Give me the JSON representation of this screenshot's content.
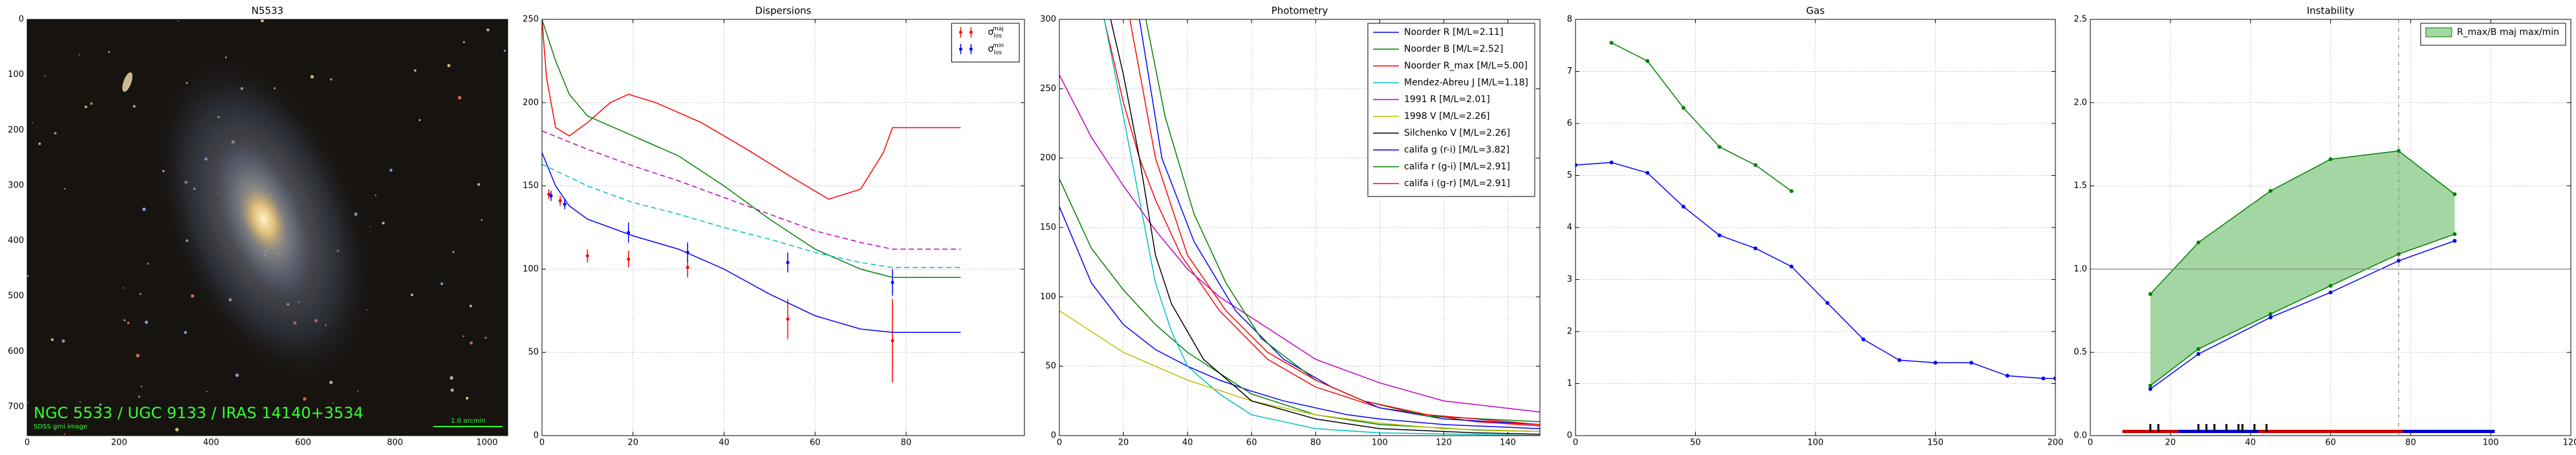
{
  "chart_data": [
    {
      "type": "image",
      "title": "N5533",
      "xlim": [
        0,
        1045
      ],
      "ylim": [
        752,
        0
      ],
      "xticks": [
        0,
        200,
        400,
        600,
        800,
        1000
      ],
      "yticks": [
        0,
        100,
        200,
        300,
        400,
        500,
        600,
        700
      ],
      "grid": false,
      "annotations": [
        "NGC 5533 / UGC 9133 / IRAS 14140+3534",
        "SDSS gmi image",
        "1.0 arcmin"
      ]
    },
    {
      "type": "line",
      "title": "Dispersions",
      "xlim": [
        0,
        106
      ],
      "ylim": [
        0,
        250
      ],
      "xticks": [
        0,
        20,
        40,
        60,
        80
      ],
      "yticks": [
        0,
        50,
        100,
        150,
        200,
        250
      ],
      "grid": true,
      "legend": "upper right",
      "series": [
        {
          "name": "σ",
          "name_sup": "maj",
          "name_sub": "los",
          "color": "#ff0000",
          "x": [
            1.5,
            4,
            10,
            19,
            32,
            54,
            77
          ],
          "values": [
            145,
            141,
            108,
            106,
            101,
            70,
            57
          ],
          "errors": [
            3,
            3,
            4,
            5,
            6,
            12,
            25
          ]
        },
        {
          "name": "σ",
          "name_sup": "min",
          "name_sub": "los",
          "color": "#0000ff",
          "x": [
            2,
            5,
            19,
            32,
            54,
            77
          ],
          "values": [
            144,
            139,
            122,
            110,
            104,
            92
          ],
          "errors": [
            3,
            3,
            6,
            6,
            6,
            8
          ]
        },
        {
          "color": "#ff0000",
          "x": [
            0,
            1,
            3,
            6,
            10,
            15,
            19,
            25,
            35,
            45,
            55,
            63,
            70,
            75,
            77,
            92
          ],
          "values": [
            250,
            215,
            185,
            180,
            188,
            200,
            205,
            200,
            188,
            172,
            155,
            142,
            148,
            170,
            185,
            185
          ]
        },
        {
          "color": "#008000",
          "x": [
            0,
            3,
            6,
            10,
            20,
            30,
            40,
            50,
            60,
            70,
            77,
            92
          ],
          "values": [
            250,
            225,
            205,
            192,
            180,
            168,
            150,
            130,
            112,
            100,
            95,
            95
          ]
        },
        {
          "color": "#0000ff",
          "x": [
            0,
            3,
            6,
            10,
            20,
            30,
            40,
            50,
            60,
            70,
            77,
            92
          ],
          "values": [
            170,
            150,
            138,
            130,
            120,
            112,
            100,
            85,
            72,
            64,
            62,
            62
          ]
        },
        {
          "color": "#bf00bf",
          "dash": "dashed",
          "x": [
            0,
            10,
            20,
            30,
            40,
            50,
            60,
            70,
            77,
            92
          ],
          "values": [
            183,
            172,
            162,
            153,
            143,
            133,
            123,
            116,
            112,
            112
          ]
        },
        {
          "color": "#00bfbf",
          "dash": "dashed",
          "x": [
            0,
            10,
            20,
            30,
            40,
            50,
            60,
            70,
            77,
            92
          ],
          "values": [
            163,
            150,
            140,
            133,
            125,
            118,
            110,
            104,
            101,
            101
          ]
        }
      ]
    },
    {
      "type": "line",
      "title": "Photometry",
      "xlim": [
        0,
        150
      ],
      "ylim": [
        0,
        300
      ],
      "xticks": [
        0,
        20,
        40,
        60,
        80,
        100,
        120,
        140
      ],
      "yticks": [
        0,
        50,
        100,
        150,
        200,
        250,
        300
      ],
      "grid": true,
      "legend": "upper right",
      "series": [
        {
          "name": "Noorder R [M/L=2.11]",
          "color": "#0000ff",
          "x": [
            0,
            10,
            20,
            30,
            40,
            50,
            60,
            70,
            80,
            90,
            100,
            120,
            150
          ],
          "values": [
            165,
            110,
            80,
            62,
            50,
            40,
            32,
            25,
            20,
            15,
            12,
            8,
            5
          ]
        },
        {
          "name": "Noorder B [M/L=2.52]",
          "color": "#008000",
          "x": [
            0,
            10,
            20,
            30,
            40,
            50,
            60,
            80,
            100,
            130,
            150
          ],
          "values": [
            185,
            135,
            105,
            80,
            60,
            45,
            30,
            15,
            8,
            4,
            3
          ]
        },
        {
          "name": "Noorder R_max [M/L=5.00]",
          "color": "#ff0000",
          "x": [
            14,
            20,
            25,
            30,
            38,
            50,
            65,
            80,
            100,
            130,
            150
          ],
          "values": [
            300,
            240,
            200,
            170,
            130,
            90,
            55,
            35,
            20,
            10,
            7
          ]
        },
        {
          "name": "Mendez-Abreu J [M/L=1.18]",
          "color": "#00bfbf",
          "x": [
            14,
            20,
            25,
            30,
            35,
            40,
            50,
            60,
            80,
            100,
            150
          ],
          "values": [
            300,
            230,
            170,
            110,
            75,
            50,
            30,
            15,
            5,
            2,
            0
          ]
        },
        {
          "name": "1991 R [M/L=2.01]",
          "color": "#bf00bf",
          "x": [
            0,
            10,
            20,
            30,
            40,
            50,
            60,
            80,
            100,
            120,
            150
          ],
          "values": [
            260,
            215,
            180,
            148,
            120,
            100,
            85,
            55,
            38,
            25,
            17
          ]
        },
        {
          "name": "1998 V [M/L=2.26]",
          "color": "#bfbf00",
          "x": [
            0,
            20,
            40,
            60,
            80,
            100,
            120,
            150
          ],
          "values": [
            90,
            60,
            40,
            25,
            15,
            9,
            5,
            3
          ]
        },
        {
          "name": "Silchenko V [M/L=2.26]",
          "color": "#000000",
          "x": [
            16,
            20,
            25,
            30,
            35,
            45,
            60,
            80,
            100,
            130,
            150
          ],
          "values": [
            300,
            260,
            200,
            130,
            95,
            55,
            25,
            12,
            5,
            2,
            1
          ]
        },
        {
          "name": "califa g (r-i) [M/L=3.82]",
          "color": "#0000ff",
          "x": [
            25,
            32,
            42,
            55,
            70,
            85,
            100,
            120,
            150
          ],
          "values": [
            300,
            200,
            140,
            90,
            55,
            35,
            20,
            12,
            8
          ]
        },
        {
          "name": "califa r (g-i) [M/L=2.91]",
          "color": "#008000",
          "x": [
            27,
            33,
            42,
            52,
            63,
            80,
            95,
            115,
            150
          ],
          "values": [
            300,
            230,
            160,
            110,
            70,
            40,
            25,
            14,
            10
          ]
        },
        {
          "name": "califa i (g-r) [M/L=2.91]",
          "color": "#ff0000",
          "x": [
            22,
            30,
            40,
            52,
            65,
            80,
            95,
            115,
            150
          ],
          "values": [
            300,
            200,
            130,
            90,
            60,
            40,
            25,
            15,
            8
          ]
        }
      ]
    },
    {
      "type": "line",
      "title": "Gas",
      "xlim": [
        0,
        200
      ],
      "ylim": [
        0,
        8
      ],
      "xticks": [
        0,
        50,
        100,
        150,
        200
      ],
      "yticks": [
        0,
        1,
        2,
        3,
        4,
        5,
        6,
        7,
        8
      ],
      "grid": true,
      "series": [
        {
          "color": "#008000",
          "marker": true,
          "x": [
            15,
            30,
            45,
            60,
            75,
            90
          ],
          "values": [
            7.55,
            7.2,
            6.3,
            5.55,
            5.2,
            4.7
          ]
        },
        {
          "color": "#0000ff",
          "marker": true,
          "x": [
            0,
            15,
            30,
            45,
            60,
            75,
            90,
            105,
            120,
            135,
            150,
            165,
            180,
            195,
            200
          ],
          "values": [
            5.2,
            5.25,
            5.05,
            4.4,
            3.85,
            3.6,
            3.25,
            2.55,
            1.85,
            1.45,
            1.4,
            1.4,
            1.15,
            1.1,
            1.1
          ]
        }
      ]
    },
    {
      "type": "line",
      "title": "Instability",
      "xlim": [
        0,
        120
      ],
      "ylim": [
        0,
        2.5
      ],
      "xticks": [
        0,
        20,
        40,
        60,
        80,
        100,
        120
      ],
      "yticks": [
        {
          "value": 0,
          "label": "0.0"
        },
        0.5,
        {
          "value": 1,
          "label": "1.0"
        },
        1.5,
        {
          "value": 2,
          "label": "2.0"
        },
        2.5
      ],
      "grid": true,
      "legend": "upper right",
      "x": [
        15,
        27,
        45,
        60,
        77,
        91
      ],
      "hlines": [
        1
      ],
      "vlines": [
        77
      ],
      "series": [
        {
          "name": "R_max/B maj max/min",
          "color": "#008000",
          "fill": "#a3d6a3",
          "marker": true,
          "values": [
            0.85,
            1.16,
            1.47,
            1.66,
            1.71,
            1.45
          ]
        },
        {
          "color": "#008000",
          "marker": true,
          "values": [
            0.3,
            0.52,
            0.73,
            0.9,
            1.09,
            1.21
          ]
        },
        {
          "color": "#0000ff",
          "marker": true,
          "values": [
            0.28,
            0.49,
            0.71,
            0.86,
            1.05,
            1.17
          ]
        }
      ],
      "bands": [
        {
          "x0": 8,
          "x1": 22,
          "color": "#cc0000"
        },
        {
          "x0": 22,
          "x1": 42,
          "color": "#0000cc"
        },
        {
          "x0": 42,
          "x1": 78,
          "color": "#cc0000"
        },
        {
          "x0": 78,
          "x1": 101,
          "color": "#0000cc"
        }
      ],
      "marker_x": [
        15,
        17,
        27,
        29,
        31,
        34,
        37,
        38,
        41,
        44
      ]
    }
  ]
}
